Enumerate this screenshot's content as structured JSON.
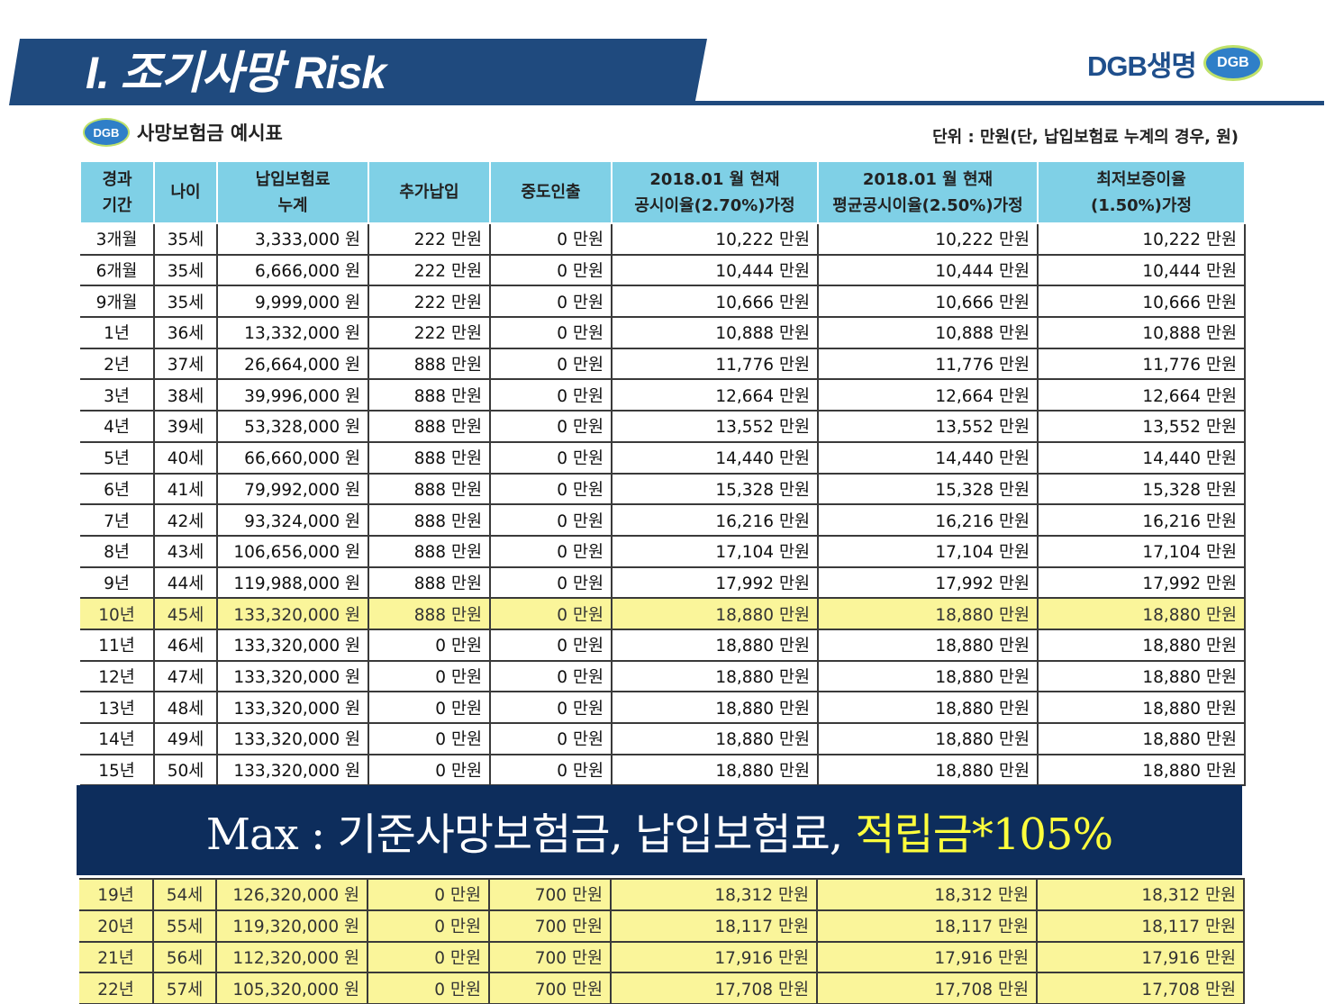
{
  "header": {
    "title": "I. 조기사망 Risk",
    "brand_text": "DGB생명",
    "brand_logo": "DGB"
  },
  "caption": {
    "logo": "DGB",
    "title": "사망보험금 예시표",
    "unit": "단위 : 만원(단, 납입보험료 누계의 경우, 원)"
  },
  "table": {
    "headers": [
      [
        "경과",
        "기간"
      ],
      [
        "나이",
        ""
      ],
      [
        "납입보험료",
        "누계"
      ],
      [
        "추가납입",
        ""
      ],
      [
        "중도인출",
        ""
      ],
      [
        "2018.01 월 현재",
        "공시이율(2.70%)가정"
      ],
      [
        "2018.01 월 현재",
        "평균공시이율(2.50%)가정"
      ],
      [
        "최저보증이율",
        "(1.50%)가정"
      ]
    ],
    "rows": [
      [
        "3개월",
        "35세",
        "3,333,000 원",
        "222 만원",
        "0 만원",
        "10,222 만원",
        "10,222 만원",
        "10,222 만원"
      ],
      [
        "6개월",
        "35세",
        "6,666,000 원",
        "222 만원",
        "0 만원",
        "10,444 만원",
        "10,444 만원",
        "10,444 만원"
      ],
      [
        "9개월",
        "35세",
        "9,999,000 원",
        "222 만원",
        "0 만원",
        "10,666 만원",
        "10,666 만원",
        "10,666 만원"
      ],
      [
        "1년",
        "36세",
        "13,332,000 원",
        "222 만원",
        "0 만원",
        "10,888 만원",
        "10,888 만원",
        "10,888 만원"
      ],
      [
        "2년",
        "37세",
        "26,664,000 원",
        "888 만원",
        "0 만원",
        "11,776 만원",
        "11,776 만원",
        "11,776 만원"
      ],
      [
        "3년",
        "38세",
        "39,996,000 원",
        "888 만원",
        "0 만원",
        "12,664 만원",
        "12,664 만원",
        "12,664 만원"
      ],
      [
        "4년",
        "39세",
        "53,328,000 원",
        "888 만원",
        "0 만원",
        "13,552 만원",
        "13,552 만원",
        "13,552 만원"
      ],
      [
        "5년",
        "40세",
        "66,660,000 원",
        "888 만원",
        "0 만원",
        "14,440 만원",
        "14,440 만원",
        "14,440 만원"
      ],
      [
        "6년",
        "41세",
        "79,992,000 원",
        "888 만원",
        "0 만원",
        "15,328 만원",
        "15,328 만원",
        "15,328 만원"
      ],
      [
        "7년",
        "42세",
        "93,324,000 원",
        "888 만원",
        "0 만원",
        "16,216 만원",
        "16,216 만원",
        "16,216 만원"
      ],
      [
        "8년",
        "43세",
        "106,656,000 원",
        "888 만원",
        "0 만원",
        "17,104 만원",
        "17,104 만원",
        "17,104 만원"
      ],
      [
        "9년",
        "44세",
        "119,988,000 원",
        "888 만원",
        "0 만원",
        "17,992 만원",
        "17,992 만원",
        "17,992 만원"
      ],
      [
        "10년",
        "45세",
        "133,320,000 원",
        "888 만원",
        "0 만원",
        "18,880 만원",
        "18,880 만원",
        "18,880 만원"
      ],
      [
        "11년",
        "46세",
        "133,320,000 원",
        "0 만원",
        "0 만원",
        "18,880 만원",
        "18,880 만원",
        "18,880 만원"
      ],
      [
        "12년",
        "47세",
        "133,320,000 원",
        "0 만원",
        "0 만원",
        "18,880 만원",
        "18,880 만원",
        "18,880 만원"
      ],
      [
        "13년",
        "48세",
        "133,320,000 원",
        "0 만원",
        "0 만원",
        "18,880 만원",
        "18,880 만원",
        "18,880 만원"
      ],
      [
        "14년",
        "49세",
        "133,320,000 원",
        "0 만원",
        "0 만원",
        "18,880 만원",
        "18,880 만원",
        "18,880 만원"
      ],
      [
        "15년",
        "50세",
        "133,320,000 원",
        "0 만원",
        "0 만원",
        "18,880 만원",
        "18,880 만원",
        "18,880 만원"
      ]
    ],
    "highlight_row_index": 12,
    "lower_rows": [
      [
        "19년",
        "54세",
        "126,320,000 원",
        "0 만원",
        "700 만원",
        "18,312 만원",
        "18,312 만원",
        "18,312 만원"
      ],
      [
        "20년",
        "55세",
        "119,320,000 원",
        "0 만원",
        "700 만원",
        "18,117 만원",
        "18,117 만원",
        "18,117 만원"
      ],
      [
        "21년",
        "56세",
        "112,320,000 원",
        "0 만원",
        "700 만원",
        "17,916 만원",
        "17,916 만원",
        "17,916 만원"
      ],
      [
        "22년",
        "57세",
        "105,320,000 원",
        "0 만원",
        "700 만원",
        "17,708 만원",
        "17,708 만원",
        "17,708 만원"
      ]
    ]
  },
  "banner": {
    "text": "Max : 기준사망보험금, 납입보험료, ",
    "accent": "적립금*105%"
  },
  "colors": {
    "navy": "#1f4a7e",
    "header_cell": "#7fd0e6",
    "highlight": "#faf59a",
    "banner_bg": "#0d2d5c",
    "banner_accent": "#ffff3c"
  }
}
